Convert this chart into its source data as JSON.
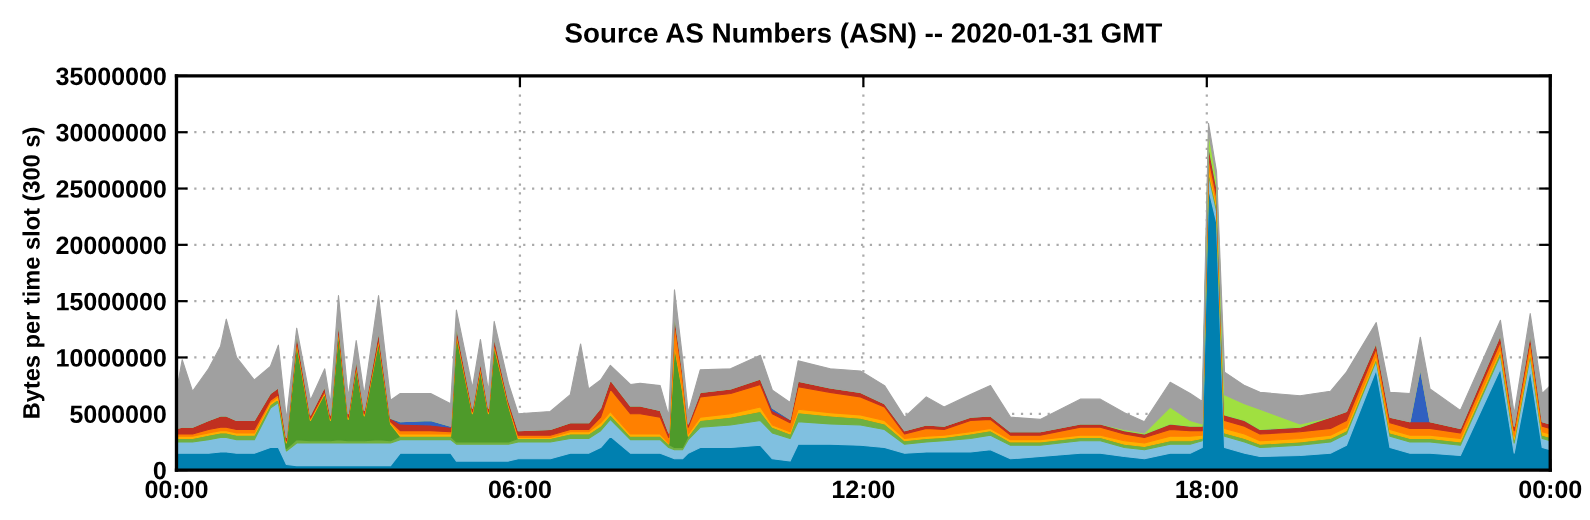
{
  "chart_data": {
    "type": "area",
    "stacked": true,
    "title": "Source AS Numbers (ASN) -- 2020-01-31 GMT",
    "ylabel": "Bytes per time slot (300 s)",
    "x": [
      0,
      0.1,
      0.28,
      0.56,
      0.77,
      0.87,
      1.05,
      1.36,
      1.64,
      1.78,
      1.92,
      2.1,
      2.34,
      2.59,
      2.69,
      2.83,
      3.0,
      3.14,
      3.28,
      3.53,
      3.74,
      3.91,
      4.44,
      4.79,
      4.89,
      5.17,
      5.31,
      5.45,
      5.55,
      5.8,
      5.97,
      6.53,
      6.88,
      7.06,
      7.2,
      7.41,
      7.58,
      7.93,
      8.1,
      8.45,
      8.6,
      8.7,
      8.84,
      8.94,
      9.15,
      9.68,
      10.2,
      10.41,
      10.72,
      10.86,
      11.42,
      11.95,
      12.37,
      12.72,
      13.1,
      13.41,
      13.87,
      14.22,
      14.57,
      15.09,
      15.79,
      16.14,
      16.56,
      16.91,
      17.36,
      17.71,
      17.92,
      18.03,
      18.17,
      18.31,
      18.66,
      18.93,
      19.63,
      20.16,
      20.44,
      20.96,
      21.2,
      21.55,
      21.73,
      21.9,
      22.43,
      23.13,
      23.37,
      23.65,
      23.86,
      24
    ],
    "series": [
      {
        "color": "#0080b0",
        "values": [
          1500000.0,
          1500000.0,
          1500000.0,
          1500000.0,
          1600000.0,
          1600000.0,
          1500000.0,
          1500000.0,
          2000000.0,
          2000000.0,
          500000.0,
          400000.0,
          400000.0,
          400000.0,
          400000.0,
          400000.0,
          400000.0,
          400000.0,
          400000.0,
          400000.0,
          400000.0,
          1500000.0,
          1500000.0,
          1500000.0,
          800000.0,
          800000.0,
          800000.0,
          800000.0,
          800000.0,
          800000.0,
          1000000.0,
          1000000.0,
          1500000.0,
          1500000.0,
          1500000.0,
          2000000.0,
          3000000.0,
          1500000.0,
          1500000.0,
          1500000.0,
          1200000.0,
          1000000.0,
          1000000.0,
          1500000.0,
          2000000.0,
          2000000.0,
          2200000.0,
          1000000.0,
          800000.0,
          2300000.0,
          2300000.0,
          2200000.0,
          2000000.0,
          1500000.0,
          1600000.0,
          1600000.0,
          1600000.0,
          1800000.0,
          1000000.0,
          1200000.0,
          1500000.0,
          1500000.0,
          1200000.0,
          1000000.0,
          1500000.0,
          1500000.0,
          2000000.0,
          25000000.0,
          22000000.0,
          2000000.0,
          1500000.0,
          1200000.0,
          1300000.0,
          1500000.0,
          2200000.0,
          8900000.0,
          2000000.0,
          1500000.0,
          1500000.0,
          1500000.0,
          1300000.0,
          9000000.0,
          1500000.0,
          8900000.0,
          2000000.0,
          1800000.0
        ]
      },
      {
        "color": "#80c0e0",
        "values": [
          1000000.0,
          1000000.0,
          1000000.0,
          1200000.0,
          1300000.0,
          1300000.0,
          1200000.0,
          1200000.0,
          3500000.0,
          4000000.0,
          1200000.0,
          2000000.0,
          2000000.0,
          2000000.0,
          2000000.0,
          2000000.0,
          2000000.0,
          2000000.0,
          2000000.0,
          2000000.0,
          2000000.0,
          1200000.0,
          1200000.0,
          1200000.0,
          1500000.0,
          1500000.0,
          1500000.0,
          1500000.0,
          1500000.0,
          1500000.0,
          1500000.0,
          1500000.0,
          1300000.0,
          1300000.0,
          1300000.0,
          1500000.0,
          1500000.0,
          1200000.0,
          1200000.0,
          1200000.0,
          800000.0,
          800000.0,
          800000.0,
          1200000.0,
          1800000.0,
          2000000.0,
          2200000.0,
          2300000.0,
          2000000.0,
          2000000.0,
          1800000.0,
          1800000.0,
          1600000.0,
          800000.0,
          900000.0,
          1000000.0,
          1200000.0,
          1300000.0,
          1200000.0,
          1000000.0,
          1100000.0,
          1100000.0,
          800000.0,
          800000.0,
          800000.0,
          800000.0,
          600000.0,
          1200000.0,
          1000000.0,
          1000000.0,
          1000000.0,
          800000.0,
          900000.0,
          1000000.0,
          1000000.0,
          800000.0,
          1000000.0,
          1000000.0,
          1000000.0,
          1000000.0,
          900000.0,
          1200000.0,
          900000.0,
          1200000.0,
          800000.0,
          800000.0
        ]
      },
      {
        "color": "#70b040",
        "values": [
          300000.0,
          300000.0,
          300000.0,
          400000.0,
          400000.0,
          400000.0,
          400000.0,
          400000.0,
          300000.0,
          300000.0,
          200000.0,
          300000.0,
          200000.0,
          200000.0,
          200000.0,
          300000.0,
          200000.0,
          200000.0,
          200000.0,
          300000.0,
          200000.0,
          300000.0,
          300000.0,
          300000.0,
          200000.0,
          200000.0,
          200000.0,
          200000.0,
          200000.0,
          200000.0,
          300000.0,
          300000.0,
          400000.0,
          400000.0,
          400000.0,
          400000.0,
          400000.0,
          300000.0,
          300000.0,
          300000.0,
          300000.0,
          200000.0,
          200000.0,
          300000.0,
          600000.0,
          700000.0,
          800000.0,
          500000.0,
          400000.0,
          800000.0,
          700000.0,
          600000.0,
          500000.0,
          300000.0,
          300000.0,
          300000.0,
          400000.0,
          400000.0,
          300000.0,
          300000.0,
          300000.0,
          300000.0,
          300000.0,
          300000.0,
          300000.0,
          300000.0,
          200000.0,
          300000.0,
          300000.0,
          300000.0,
          300000.0,
          300000.0,
          300000.0,
          300000.0,
          300000.0,
          200000.0,
          300000.0,
          300000.0,
          300000.0,
          300000.0,
          300000.0,
          300000.0,
          300000.0,
          300000.0,
          300000.0,
          300000.0
        ]
      },
      {
        "color": "#4e9a2a",
        "values": [
          0,
          0,
          0,
          0,
          0,
          0,
          0,
          0,
          0,
          0,
          500000.0,
          8500000.0,
          1800000.0,
          4200000.0,
          1800000.0,
          9500000.0,
          1900000.0,
          6500000.0,
          2200000.0,
          8700000.0,
          1500000.0,
          0,
          0,
          0,
          9500000.0,
          2500000.0,
          6400000.0,
          2500000.0,
          8500000.0,
          3200000.0,
          0,
          0,
          0,
          0,
          0,
          0,
          0,
          0,
          0,
          0,
          0,
          9000000.0,
          5000000.0,
          0,
          0,
          0,
          0,
          0,
          0,
          0,
          0,
          0,
          0,
          0,
          0,
          0,
          0,
          0,
          0,
          0,
          0,
          0,
          0,
          0,
          0,
          0,
          0,
          0,
          0,
          0,
          0,
          0,
          0,
          0,
          0,
          0,
          0,
          0,
          0,
          0,
          0,
          0,
          0,
          0,
          0,
          0
        ]
      },
      {
        "color": "#ffb000",
        "values": [
          200000.0,
          200000.0,
          200000.0,
          200000.0,
          200000.0,
          200000.0,
          200000.0,
          200000.0,
          200000.0,
          200000.0,
          100000.0,
          100000.0,
          100000.0,
          100000.0,
          100000.0,
          100000.0,
          100000.0,
          100000.0,
          100000.0,
          100000.0,
          100000.0,
          200000.0,
          200000.0,
          200000.0,
          100000.0,
          100000.0,
          100000.0,
          100000.0,
          100000.0,
          100000.0,
          100000.0,
          100000.0,
          200000.0,
          200000.0,
          200000.0,
          300000.0,
          300000.0,
          200000.0,
          200000.0,
          200000.0,
          100000.0,
          200000.0,
          200000.0,
          200000.0,
          300000.0,
          300000.0,
          400000.0,
          200000.0,
          200000.0,
          300000.0,
          300000.0,
          300000.0,
          300000.0,
          200000.0,
          200000.0,
          200000.0,
          200000.0,
          200000.0,
          200000.0,
          200000.0,
          200000.0,
          200000.0,
          300000.0,
          300000.0,
          400000.0,
          400000.0,
          300000.0,
          500000.0,
          400000.0,
          400000.0,
          400000.0,
          300000.0,
          300000.0,
          300000.0,
          300000.0,
          300000.0,
          300000.0,
          300000.0,
          300000.0,
          300000.0,
          300000.0,
          300000.0,
          300000.0,
          300000.0,
          300000.0,
          300000.0
        ]
      },
      {
        "color": "#ff8000",
        "values": [
          200000.0,
          200000.0,
          200000.0,
          300000.0,
          300000.0,
          300000.0,
          300000.0,
          300000.0,
          200000.0,
          200000.0,
          100000.0,
          200000.0,
          100000.0,
          100000.0,
          100000.0,
          200000.0,
          100000.0,
          100000.0,
          100000.0,
          200000.0,
          100000.0,
          300000.0,
          300000.0,
          200000.0,
          200000.0,
          100000.0,
          200000.0,
          100000.0,
          200000.0,
          100000.0,
          200000.0,
          200000.0,
          200000.0,
          200000.0,
          200000.0,
          500000.0,
          2000000.0,
          1800000.0,
          1800000.0,
          1500000.0,
          500000.0,
          2000000.0,
          1200000.0,
          600000.0,
          1800000.0,
          1800000.0,
          2000000.0,
          1000000.0,
          800000.0,
          2000000.0,
          1800000.0,
          1600000.0,
          1200000.0,
          400000.0,
          700000.0,
          500000.0,
          1000000.0,
          800000.0,
          400000.0,
          400000.0,
          700000.0,
          700000.0,
          600000.0,
          500000.0,
          600000.0,
          500000.0,
          400000.0,
          800000.0,
          600000.0,
          700000.0,
          700000.0,
          600000.0,
          600000.0,
          600000.0,
          600000.0,
          600000.0,
          600000.0,
          600000.0,
          600000.0,
          600000.0,
          500000.0,
          600000.0,
          500000.0,
          800000.0,
          500000.0,
          500000.0
        ]
      },
      {
        "color": "#c03020",
        "values": [
          500000.0,
          600000.0,
          600000.0,
          800000.0,
          1000000.0,
          1000000.0,
          800000.0,
          800000.0,
          600000.0,
          600000.0,
          300000.0,
          600000.0,
          300000.0,
          400000.0,
          300000.0,
          600000.0,
          300000.0,
          500000.0,
          300000.0,
          600000.0,
          300000.0,
          600000.0,
          500000.0,
          400000.0,
          500000.0,
          300000.0,
          400000.0,
          300000.0,
          500000.0,
          300000.0,
          400000.0,
          500000.0,
          600000.0,
          600000.0,
          600000.0,
          800000.0,
          800000.0,
          700000.0,
          700000.0,
          600000.0,
          400000.0,
          600000.0,
          400000.0,
          300000.0,
          400000.0,
          400000.0,
          500000.0,
          300000.0,
          300000.0,
          500000.0,
          400000.0,
          400000.0,
          300000.0,
          300000.0,
          300000.0,
          300000.0,
          300000.0,
          300000.0,
          300000.0,
          300000.0,
          300000.0,
          300000.0,
          300000.0,
          300000.0,
          500000.0,
          400000.0,
          400000.0,
          1000000.0,
          800000.0,
          500000.0,
          500000.0,
          400000.0,
          400000.0,
          1000000.0,
          800000.0,
          500000.0,
          500000.0,
          600000.0,
          600000.0,
          600000.0,
          400000.0,
          600000.0,
          400000.0,
          600000.0,
          400000.0,
          400000.0
        ]
      },
      {
        "color": "#3060c0",
        "values": [
          0,
          0,
          0,
          0,
          0,
          0,
          0,
          0,
          0,
          0,
          0,
          0,
          0,
          0,
          0,
          0,
          0,
          0,
          0,
          0,
          0,
          200000.0,
          400000.0,
          100000.0,
          0,
          0,
          0,
          0,
          0,
          0,
          0,
          0,
          0,
          0,
          0,
          0,
          0,
          0,
          0,
          0,
          0,
          0,
          0,
          0,
          0,
          0,
          0,
          200000.0,
          0,
          0,
          0,
          0,
          0,
          0,
          0,
          0,
          0,
          0,
          0,
          0,
          0,
          0,
          0,
          0,
          0,
          0,
          0,
          0,
          0,
          0,
          0,
          0,
          0,
          0,
          0,
          0,
          0,
          0,
          4700000.0,
          0,
          0,
          0,
          0,
          0,
          0,
          0
        ]
      },
      {
        "color": "#a0e040",
        "values": [
          0,
          0,
          0,
          0,
          0,
          0,
          0,
          0,
          0,
          0,
          0,
          0,
          0,
          0,
          0,
          0,
          0,
          0,
          0,
          0,
          0,
          0,
          0,
          0,
          0,
          0,
          0,
          0,
          0,
          0,
          0,
          0,
          0,
          0,
          0,
          0,
          0,
          0,
          0,
          0,
          0,
          0,
          0,
          0,
          0,
          0,
          0,
          0,
          0,
          0,
          0,
          0,
          0,
          0,
          0,
          0,
          0,
          0,
          0,
          0,
          0,
          0,
          100000.0,
          100000.0,
          1500000.0,
          500000.0,
          200000.0,
          1200000.0,
          800000.0,
          1800000.0,
          1500000.0,
          1800000.0,
          300000.0,
          0,
          0,
          0,
          0,
          0,
          0,
          0,
          0,
          0,
          0,
          0,
          0,
          0
        ]
      },
      {
        "color": "#a0a0a0",
        "values": [
          3300000.0,
          6000000.0,
          3200000.0,
          4600000.0,
          6200000.0,
          8600000.0,
          5600000.0,
          3600000.0,
          2400000.0,
          3800000.0,
          1600000.0,
          500000.0,
          1300000.0,
          1600000.0,
          1000000.0,
          2400000.0,
          1500000.0,
          1700000.0,
          1400000.0,
          3200000.0,
          1600000.0,
          2500000.0,
          2400000.0,
          2000000.0,
          1400000.0,
          1800000.0,
          2000000.0,
          1500000.0,
          1400000.0,
          1500000.0,
          1500000.0,
          1600000.0,
          2500000.0,
          7000000.0,
          3000000.0,
          2500000.0,
          1300000.0,
          1900000.0,
          2000000.0,
          2200000.0,
          1500000.0,
          2200000.0,
          1200000.0,
          1000000.0,
          2000000.0,
          1800000.0,
          2100000.0,
          1600000.0,
          1500000.0,
          1800000.0,
          1700000.0,
          1900000.0,
          1600000.0,
          1200000.0,
          2500000.0,
          1700000.0,
          2000000.0,
          2700000.0,
          1300000.0,
          1100000.0,
          2200000.0,
          2200000.0,
          1500000.0,
          1000000.0,
          2200000.0,
          2400000.0,
          2000000.0,
          800000.0,
          600000.0,
          2000000.0,
          1600000.0,
          1500000.0,
          2500000.0,
          2300000.0,
          3500000.0,
          1800000.0,
          2200000.0,
          2500000.0,
          2800000.0,
          2900000.0,
          1600000.0,
          1300000.0,
          1100000.0,
          1800000.0,
          2500000.0,
          3400000.0
        ]
      }
    ],
    "xlim": [
      0,
      24
    ],
    "xticks": [
      {
        "value": 0,
        "label": "00:00"
      },
      {
        "value": 6,
        "label": "06:00"
      },
      {
        "value": 12,
        "label": "12:00"
      },
      {
        "value": 18,
        "label": "18:00"
      },
      {
        "value": 24,
        "label": "00:00"
      }
    ],
    "ylim": [
      0,
      35000000
    ],
    "yticks": [
      0,
      5000000,
      10000000,
      15000000,
      20000000,
      25000000,
      30000000,
      35000000
    ],
    "grid": true
  }
}
